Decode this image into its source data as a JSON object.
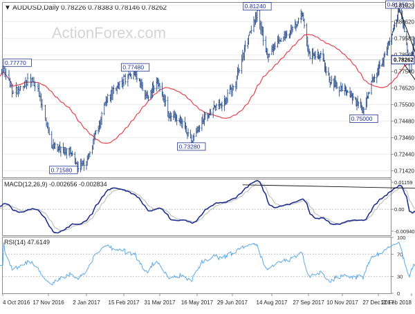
{
  "header": {
    "symbol": "AUDUSD,Daily",
    "ohlc": "0.78226 0.78383 0.78146 0.78262",
    "watermark": "ActionForex.com"
  },
  "chart_data": [
    {
      "type": "ohlc",
      "title": "AUDUSD,Daily",
      "ylim": [
        0.7102,
        0.8178
      ],
      "y_ticks": [
        "0.81620",
        "0.80620",
        "0.79580",
        "0.78560",
        "0.77540",
        "0.76520",
        "0.75500",
        "0.74480",
        "0.73460",
        "0.72440",
        "0.71420"
      ],
      "current_price": "0.78262",
      "x_tick_labels": [
        "4 Oct 2016",
        "17 Nov 2016",
        "2 Jan 2017",
        "15 Feb 2017",
        "31 Mar 2017",
        "16 May 2017",
        "29 Jun 2017",
        "14 Aug 2017",
        "27 Sep 2017",
        "10 Nov 2017",
        "27 Dec 2017",
        "12 Feb 2018"
      ],
      "annotations": [
        {
          "label": "0.77770",
          "x": "4 Oct 2016",
          "y": 0.7777
        },
        {
          "label": "0.71580",
          "x": "23 Dec 2016",
          "y": 0.7158
        },
        {
          "label": "0.77480",
          "x": "1 Mar 2017",
          "y": 0.7748
        },
        {
          "label": "0.73280",
          "x": "9 May 2017",
          "y": 0.7328
        },
        {
          "label": "0.81240",
          "x": "28 Jul 2017",
          "y": 0.8124
        },
        {
          "label": "0.75000",
          "x": "8 Dec 2017",
          "y": 0.75
        },
        {
          "label": "0.81350",
          "x": "26 Jan 2018",
          "y": 0.8135
        }
      ],
      "moving_average_color": "#e8323c",
      "bar_color": "#2a4e8c",
      "trendlines": [
        {
          "from": {
            "x": "26 Jan 2018",
            "y": 0.8135
          },
          "to": {
            "x": "20 Feb 2018",
            "y": 0.784
          }
        },
        {
          "from": {
            "x": "30 Jan 2018",
            "y": 0.7815
          },
          "to": {
            "x": "20 Feb 2018",
            "y": 0.7685
          }
        }
      ]
    },
    {
      "type": "line",
      "title": "MACD(12,26,9) -0.002656 -0.002834",
      "ylim": [
        -0.0112,
        0.0128
      ],
      "y_ticks": [
        "0.01159",
        "0.00",
        "-0.009408"
      ],
      "series": [
        {
          "name": "MACD",
          "color": "#1e2f8e"
        },
        {
          "name": "Signal",
          "color": "#b0b0b0"
        }
      ],
      "trendline": {
        "from": {
          "x": "11 Jul 2017",
          "y": 0.0105
        },
        "to": {
          "x": "19 Feb 2018",
          "y": 0.009
        }
      }
    },
    {
      "type": "line",
      "title": "RSI(14) 47.6149",
      "ylim": [
        0,
        100
      ],
      "y_ticks": [
        "100",
        "70",
        "30",
        "0"
      ],
      "series": [
        {
          "name": "RSI",
          "color": "#5aa9e6"
        }
      ]
    }
  ]
}
